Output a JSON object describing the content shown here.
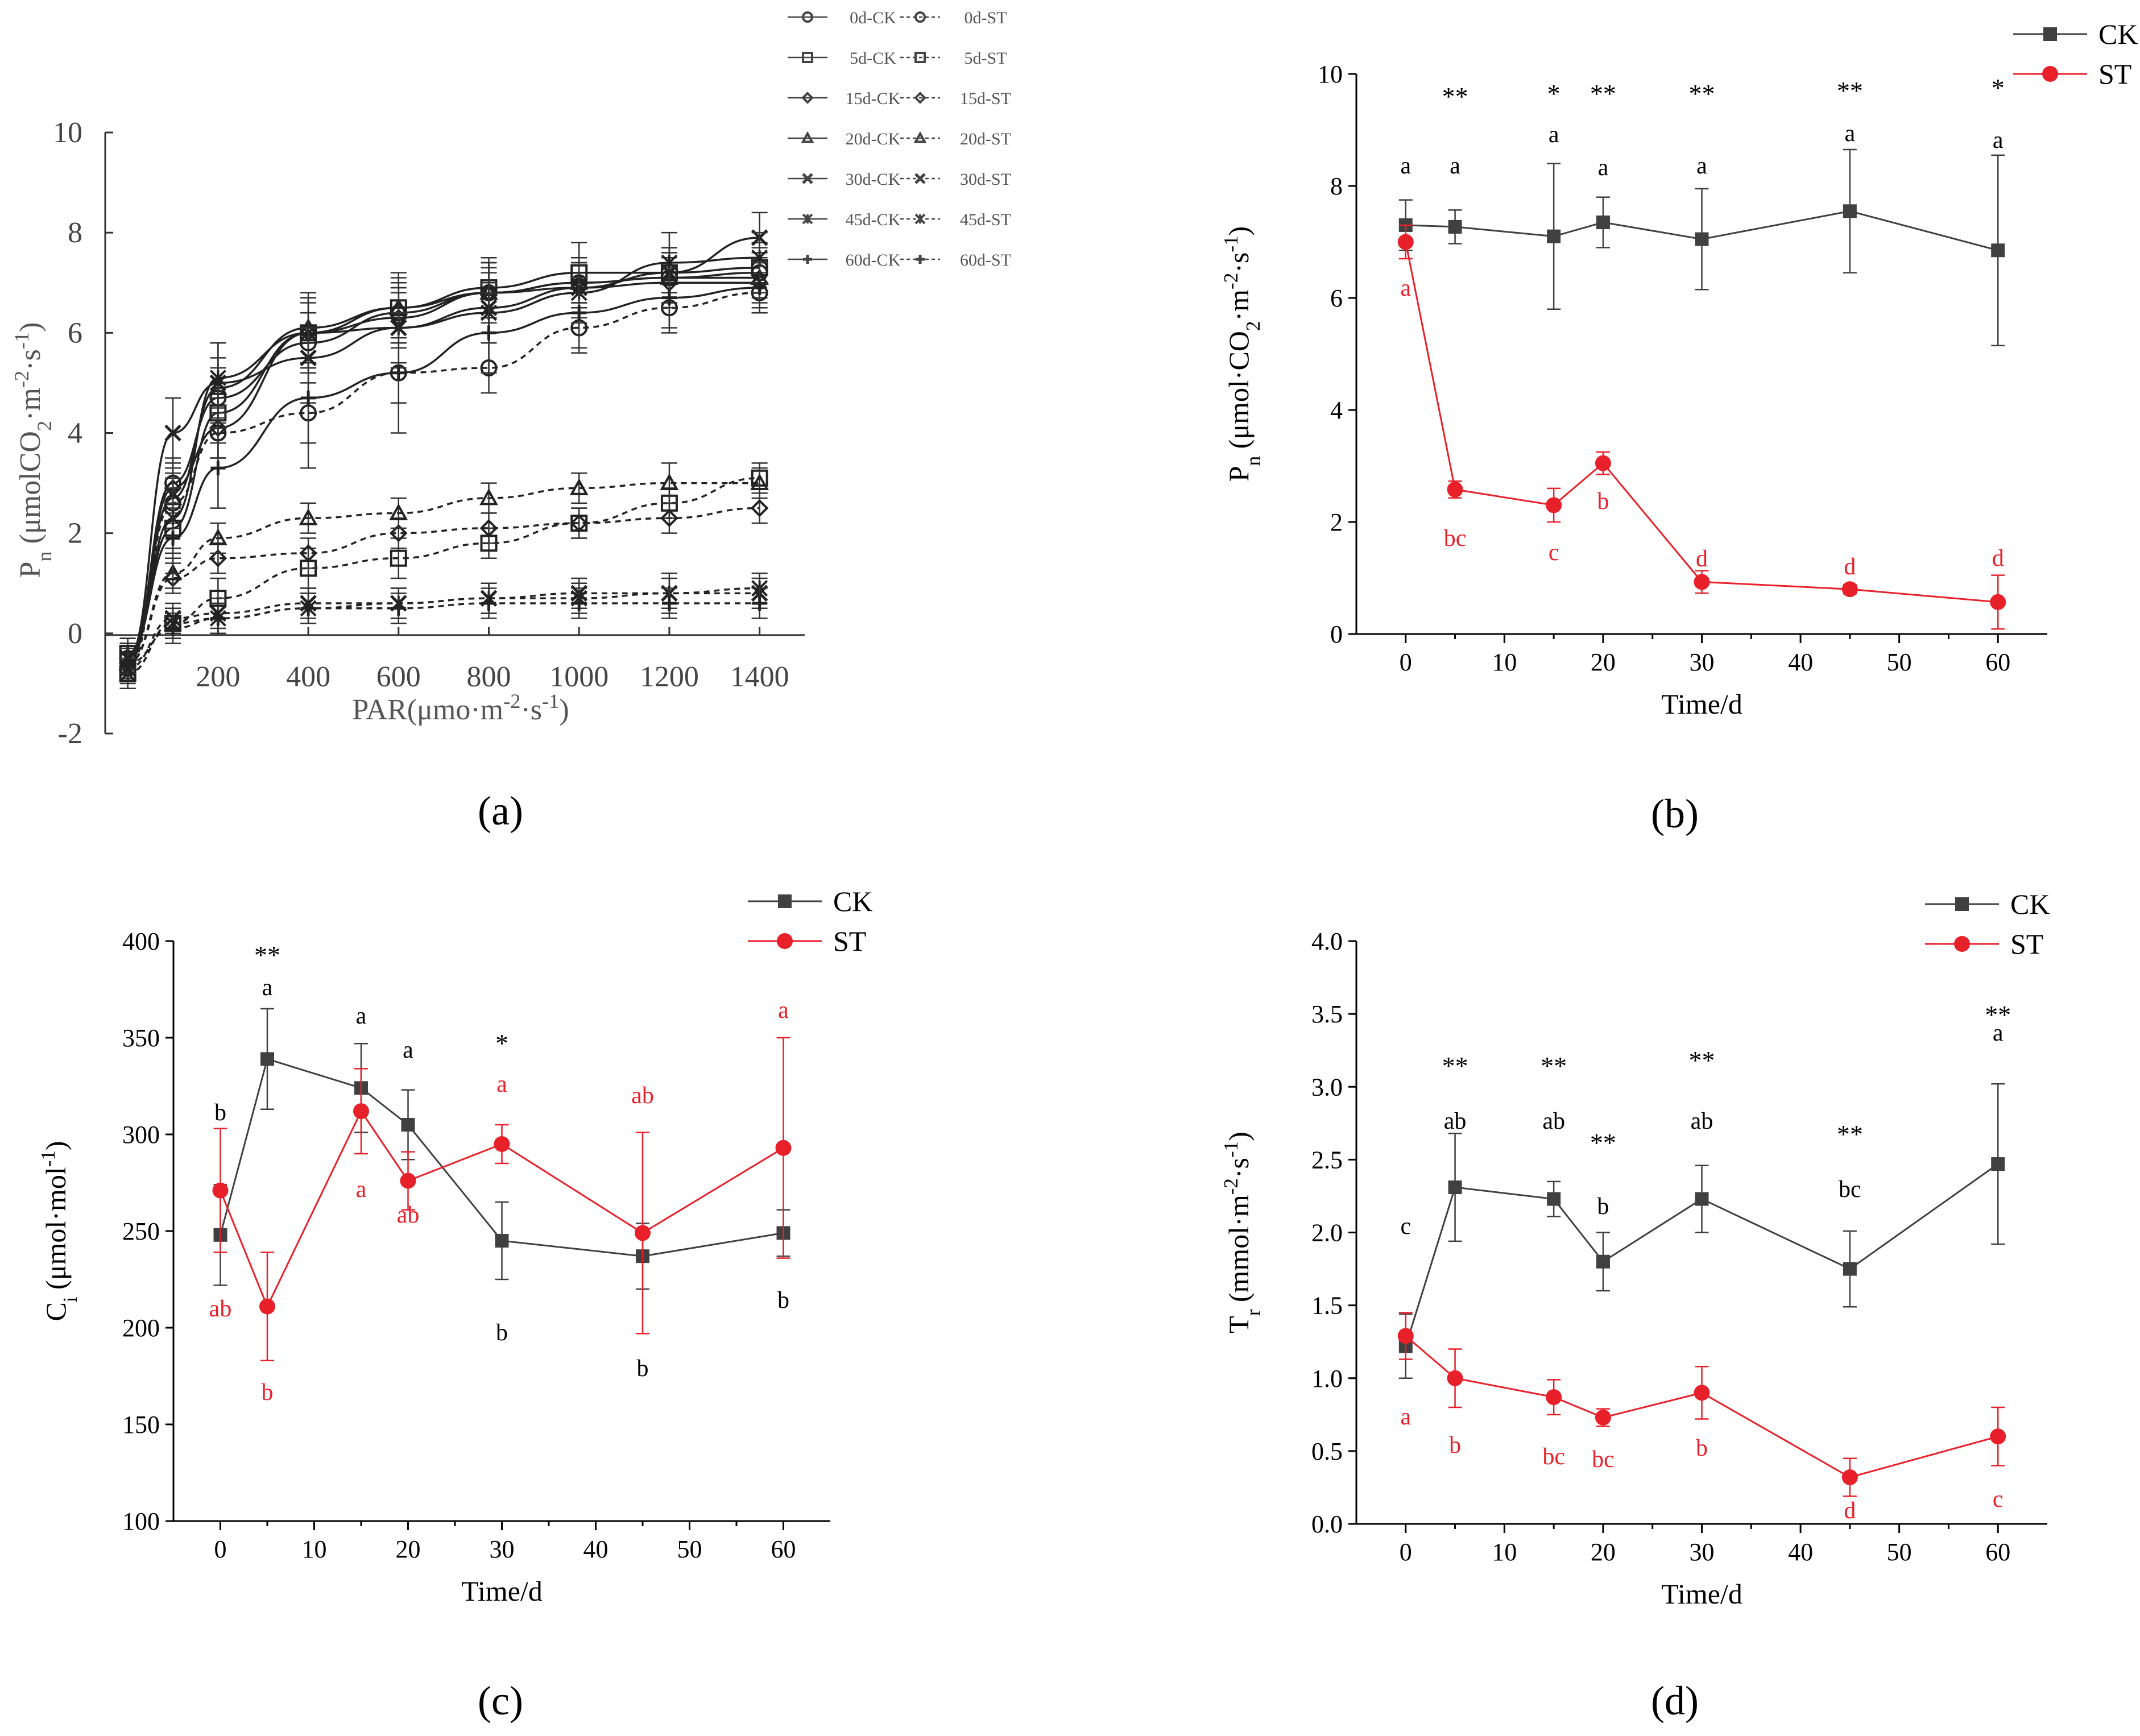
{
  "colors": {
    "ck": "#404040",
    "st": "#e8202a",
    "axis": "#000000",
    "grey": "#888888"
  },
  "panels": {
    "a": {
      "label": "a"
    },
    "b": {
      "label": "b"
    },
    "c": {
      "label": "c"
    },
    "d": {
      "label": "d"
    }
  },
  "chart_data": [
    {
      "id": "a",
      "type": "line",
      "title": "",
      "xlabel": "PAR(μmo·m⁻²·s⁻¹)",
      "ylabel": "Pn (μmolCO₂·m⁻²·s⁻¹)",
      "xlim": [
        -50,
        1500
      ],
      "ylim": [
        -2,
        10
      ],
      "x_ticks": [
        200,
        400,
        600,
        800,
        1000,
        1200,
        1400
      ],
      "y_ticks": [
        -2,
        0,
        2,
        4,
        6,
        8,
        10
      ],
      "x": [
        0,
        100,
        200,
        400,
        600,
        800,
        1000,
        1200,
        1400
      ],
      "legend": [
        "0d-CK",
        "0d-ST",
        "5d-CK",
        "5d-ST",
        "15d-CK",
        "15d-ST",
        "20d-CK",
        "20d-ST",
        "30d-CK",
        "30d-ST",
        "45d-CK",
        "45d-ST",
        "60d-CK",
        "60d-ST"
      ],
      "legend_position": "top-right",
      "series": [
        {
          "name": "0d-CK",
          "style": "solid",
          "marker": "circle",
          "values": [
            -0.5,
            3.0,
            4.7,
            5.8,
            6.4,
            6.8,
            7.0,
            7.1,
            7.2
          ],
          "err": [
            0.3,
            0.5,
            0.6,
            0.6,
            0.6,
            0.6,
            0.5,
            0.5,
            0.5
          ]
        },
        {
          "name": "0d-ST",
          "style": "dash",
          "marker": "circle",
          "values": [
            -0.7,
            2.6,
            4.0,
            4.4,
            5.2,
            5.3,
            6.1,
            6.5,
            6.8
          ],
          "err": [
            0.4,
            0.5,
            0.5,
            0.6,
            0.6,
            0.5,
            0.5,
            0.5,
            0.4
          ]
        },
        {
          "name": "5d-CK",
          "style": "solid",
          "marker": "square",
          "values": [
            -0.4,
            2.1,
            4.4,
            6.0,
            6.5,
            6.9,
            7.2,
            7.2,
            7.3
          ],
          "err": [
            0.3,
            0.5,
            0.6,
            0.7,
            0.7,
            0.6,
            0.6,
            0.5,
            0.5
          ]
        },
        {
          "name": "5d-ST",
          "style": "dash",
          "marker": "square",
          "values": [
            -0.8,
            0.2,
            0.7,
            1.3,
            1.5,
            1.8,
            2.2,
            2.6,
            3.1
          ],
          "err": [
            0.3,
            0.3,
            0.4,
            0.4,
            0.4,
            0.3,
            0.3,
            0.3,
            0.3
          ]
        },
        {
          "name": "15d-CK",
          "style": "solid",
          "marker": "diamond",
          "values": [
            -0.6,
            2.9,
            4.1,
            6.0,
            6.3,
            6.8,
            6.9,
            7.0,
            7.0
          ],
          "err": [
            0.3,
            0.5,
            0.6,
            0.6,
            0.6,
            0.5,
            0.5,
            0.5,
            0.5
          ]
        },
        {
          "name": "15d-ST",
          "style": "dash",
          "marker": "diamond",
          "values": [
            -0.6,
            1.1,
            1.5,
            1.6,
            2.0,
            2.1,
            2.2,
            2.3,
            2.5
          ],
          "err": [
            0.3,
            0.3,
            0.3,
            0.3,
            0.3,
            0.3,
            0.3,
            0.3,
            0.3
          ]
        },
        {
          "name": "20d-CK",
          "style": "solid",
          "marker": "triangle",
          "values": [
            -0.6,
            2.7,
            4.9,
            6.1,
            6.5,
            6.8,
            7.0,
            7.1,
            7.1
          ],
          "err": [
            0.3,
            0.5,
            0.6,
            0.7,
            0.6,
            0.6,
            0.5,
            0.5,
            0.5
          ]
        },
        {
          "name": "20d-ST",
          "style": "dash",
          "marker": "triangle",
          "values": [
            -0.6,
            1.2,
            1.9,
            2.3,
            2.4,
            2.7,
            2.9,
            3.0,
            3.0
          ],
          "err": [
            0.3,
            0.3,
            0.3,
            0.3,
            0.3,
            0.3,
            0.3,
            0.4,
            0.3
          ]
        },
        {
          "name": "30d-CK",
          "style": "solid",
          "marker": "x",
          "values": [
            -0.5,
            4.0,
            5.0,
            5.5,
            6.1,
            6.5,
            6.9,
            7.2,
            7.9
          ],
          "err": [
            0.3,
            0.7,
            0.8,
            0.9,
            0.8,
            0.7,
            0.6,
            0.5,
            0.5
          ]
        },
        {
          "name": "30d-ST",
          "style": "dash",
          "marker": "x",
          "values": [
            -0.7,
            0.3,
            0.4,
            0.6,
            0.6,
            0.7,
            0.8,
            0.8,
            0.8
          ],
          "err": [
            0.3,
            0.3,
            0.3,
            0.3,
            0.3,
            0.3,
            0.3,
            0.3,
            0.3
          ]
        },
        {
          "name": "45d-CK",
          "style": "solid",
          "marker": "asterisk",
          "values": [
            -0.5,
            2.3,
            5.1,
            6.0,
            6.1,
            6.4,
            6.8,
            7.4,
            7.5
          ],
          "err": [
            0.3,
            0.6,
            0.7,
            0.7,
            0.7,
            0.6,
            0.6,
            0.6,
            0.5
          ]
        },
        {
          "name": "45d-ST",
          "style": "dash",
          "marker": "asterisk",
          "values": [
            -0.8,
            0.2,
            0.3,
            0.5,
            0.6,
            0.7,
            0.7,
            0.8,
            0.9
          ],
          "err": [
            0.3,
            0.3,
            0.3,
            0.3,
            0.3,
            0.3,
            0.3,
            0.4,
            0.3
          ]
        },
        {
          "name": "60d-CK",
          "style": "solid",
          "marker": "plus",
          "values": [
            -0.4,
            1.9,
            3.3,
            4.7,
            5.2,
            6.0,
            6.4,
            6.7,
            6.9
          ],
          "err": [
            0.3,
            0.7,
            0.8,
            1.4,
            1.2,
            0.8,
            0.7,
            0.6,
            0.5
          ]
        },
        {
          "name": "60d-ST",
          "style": "dash",
          "marker": "plus",
          "values": [
            -0.6,
            0.1,
            0.3,
            0.5,
            0.5,
            0.6,
            0.6,
            0.6,
            0.6
          ],
          "err": [
            0.4,
            0.3,
            0.3,
            0.3,
            0.3,
            0.3,
            0.3,
            0.3,
            0.3
          ]
        }
      ]
    },
    {
      "id": "b",
      "type": "line",
      "title": "",
      "xlabel": "Time/d",
      "ylabel": "Pn (μmol·CO₂·m⁻²·s⁻¹)",
      "xlim": [
        -5,
        65
      ],
      "ylim": [
        0,
        10
      ],
      "x_ticks": [
        0,
        10,
        20,
        30,
        40,
        50,
        60
      ],
      "y_ticks": [
        0,
        2,
        4,
        6,
        8,
        10
      ],
      "x": [
        0,
        5,
        15,
        20,
        30,
        45,
        60
      ],
      "legend_position": "top-right",
      "series": [
        {
          "name": "CK",
          "values": [
            7.3,
            7.27,
            7.1,
            7.35,
            7.05,
            7.55,
            6.85
          ],
          "err": [
            0.45,
            0.3,
            1.3,
            0.45,
            0.9,
            1.1,
            1.7
          ],
          "letters": [
            "a",
            "a",
            "a",
            "a",
            "a",
            "a",
            "a"
          ]
        },
        {
          "name": "ST",
          "values": [
            7.0,
            2.58,
            2.3,
            3.05,
            0.93,
            0.8,
            0.57
          ],
          "err": [
            0.3,
            0.15,
            0.3,
            0.2,
            0.2,
            0.08,
            0.48
          ],
          "letters": [
            "a",
            "bc",
            "c",
            "b",
            "d",
            "d",
            "d"
          ]
        }
      ],
      "significance": [
        "",
        "**",
        "*",
        "**",
        "**",
        "**",
        "*"
      ]
    },
    {
      "id": "c",
      "type": "line",
      "title": "",
      "xlabel": "Time/d",
      "ylabel": "Ci (μmol·mol⁻¹)",
      "xlim": [
        -5,
        65
      ],
      "ylim": [
        100,
        400
      ],
      "x_ticks": [
        0,
        10,
        20,
        30,
        40,
        50,
        60
      ],
      "y_ticks": [
        100,
        150,
        200,
        250,
        300,
        350,
        400
      ],
      "x": [
        0,
        5,
        15,
        20,
        30,
        45,
        60
      ],
      "legend_position": "top-right",
      "series": [
        {
          "name": "CK",
          "values": [
            248,
            339,
            324,
            305,
            245,
            237,
            249
          ],
          "err": [
            26,
            26,
            23,
            18,
            20,
            17,
            12
          ],
          "letters": [
            "b",
            "a",
            "a",
            "a",
            "b",
            "b",
            "b"
          ]
        },
        {
          "name": "ST",
          "values": [
            271,
            211,
            312,
            276,
            295,
            249,
            293
          ],
          "err": [
            32,
            28,
            22,
            15,
            10,
            52,
            57
          ],
          "letters": [
            "ab",
            "b",
            "a",
            "ab",
            "a",
            "ab",
            "a"
          ]
        }
      ],
      "significance": [
        "",
        "**",
        "",
        "",
        "*",
        "",
        ""
      ]
    },
    {
      "id": "d",
      "type": "line",
      "title": "",
      "xlabel": "Time/d",
      "ylabel": "Tr (mmol·m⁻²·s⁻¹)",
      "xlim": [
        -5,
        65
      ],
      "ylim": [
        0,
        4
      ],
      "x_ticks": [
        0,
        10,
        20,
        30,
        40,
        50,
        60
      ],
      "y_ticks": [
        0.0,
        0.5,
        1.0,
        1.5,
        2.0,
        2.5,
        3.0,
        3.5,
        4.0
      ],
      "x": [
        0,
        5,
        15,
        20,
        30,
        45,
        60
      ],
      "legend_position": "top-right",
      "series": [
        {
          "name": "CK",
          "values": [
            1.22,
            2.31,
            2.23,
            1.8,
            2.23,
            1.75,
            2.47
          ],
          "err": [
            0.22,
            0.37,
            0.12,
            0.2,
            0.23,
            0.26,
            0.55
          ],
          "letters": [
            "c",
            "ab",
            "ab",
            "b",
            "ab",
            "bc",
            "a"
          ]
        },
        {
          "name": "ST",
          "values": [
            1.29,
            1.0,
            0.87,
            0.73,
            0.9,
            0.32,
            0.6
          ],
          "err": [
            0.16,
            0.2,
            0.12,
            0.06,
            0.18,
            0.13,
            0.2
          ],
          "letters": [
            "a",
            "b",
            "bc",
            "bc",
            "b",
            "d",
            "c"
          ]
        }
      ],
      "significance": [
        "",
        "**",
        "**",
        "**",
        "**",
        "**",
        "**"
      ]
    }
  ]
}
